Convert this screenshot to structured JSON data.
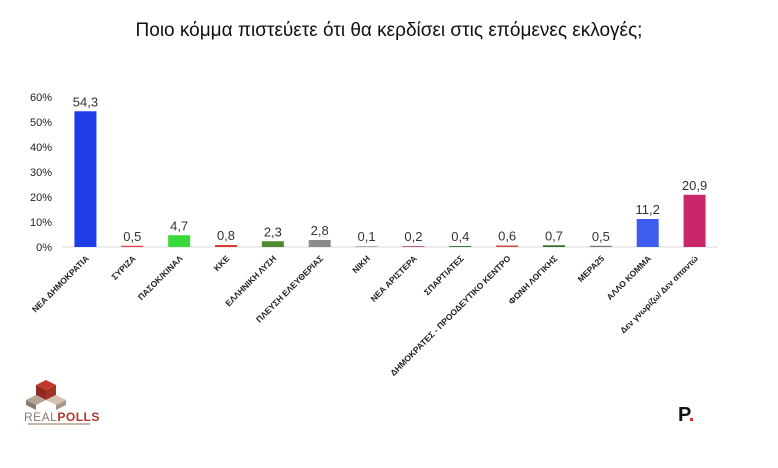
{
  "chart_data": {
    "type": "bar",
    "title": "Ποιο κόμμα πιστεύετε ότι θα κερδίσει στις επόμενες εκλογές;",
    "xlabel": "",
    "ylabel": "",
    "ylim": [
      0,
      60
    ],
    "yticks": [
      "0%",
      "10%",
      "20%",
      "30%",
      "40%",
      "50%",
      "60%"
    ],
    "grid": false,
    "legend": "none",
    "categories": [
      "ΝΕΑ ΔΗΜΟΚΡΑΤΙΑ",
      "ΣΥΡΙΖΑ",
      "ΠΑΣΟΚ/ΚΙΝΑΛ",
      "ΚΚΕ",
      "ΕΛΛΗΝΙΚΗ ΛΥΣΗ",
      "ΠΛΕΥΣΗ ΕΛΕΥΘΕΡΙΑΣ",
      "ΝΙΚΗ",
      "ΝΕΑ ΑΡΙΣΤΕΡΑ",
      "ΣΠΑΡΤΙΑΤΕΣ",
      "ΔΗΜΟΚΡΑΤΕΣ - ΠΡΟΟΔΕΥΤΙΚΟ ΚΕΝΤΡΟ",
      "ΦΩΝΗ ΛΟΓΙΚΗΣ",
      "ΜΕΡΑ25",
      "ΑΛΛΟ ΚΟΜΜΑ",
      "Δεν γνωρίζω/ Δεν απαντώ"
    ],
    "values": [
      54.3,
      0.5,
      4.7,
      0.8,
      2.3,
      2.8,
      0.1,
      0.2,
      0.4,
      0.6,
      0.7,
      0.5,
      11.2,
      20.9
    ],
    "value_labels": [
      "54,3",
      "0,5",
      "4,7",
      "0,8",
      "2,3",
      "2,8",
      "0,1",
      "0,2",
      "0,4",
      "0,6",
      "0,7",
      "0,5",
      "11,2",
      "20,9"
    ],
    "colors": [
      "#1f3de6",
      "#e8404a",
      "#3ad93a",
      "#e23b2b",
      "#4e8a2a",
      "#8c8c8c",
      "#9a9a9a",
      "#b03070",
      "#2e7d32",
      "#d0463a",
      "#3a6b2a",
      "#7a7a7a",
      "#3d5cf0",
      "#c8286a"
    ]
  },
  "logo": {
    "left": "REAL",
    "right": "POLLS"
  },
  "brand": {
    "letter": "P",
    "dot": "."
  }
}
